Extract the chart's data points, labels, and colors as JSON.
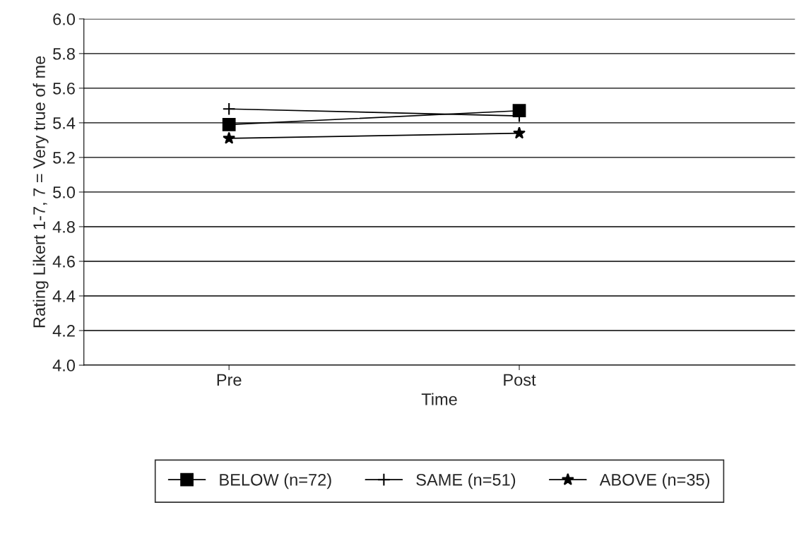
{
  "chart_data": {
    "type": "line",
    "xlabel": "Time",
    "ylabel": "Rating Likert 1-7, 7 = Very true of me",
    "categories": [
      "Pre",
      "Post"
    ],
    "series": [
      {
        "name": "BELOW (n=72)",
        "color": "#000000",
        "marker": "square",
        "values": [
          5.39,
          5.47
        ]
      },
      {
        "name": "SAME (n=51)",
        "color": "#000000",
        "marker": "cross",
        "values": [
          5.48,
          5.44
        ]
      },
      {
        "name": "ABOVE (n=35)",
        "color": "#000000",
        "marker": "star",
        "values": [
          5.31,
          5.34
        ]
      }
    ],
    "ylim": [
      4.0,
      6.0
    ],
    "yticks": [
      {
        "value": 4.0,
        "label": "4.0"
      },
      {
        "value": 4.2,
        "label": "4.2"
      },
      {
        "value": 4.4,
        "label": "4.4"
      },
      {
        "value": 4.6,
        "label": "4.6"
      },
      {
        "value": 4.8,
        "label": "4.8"
      },
      {
        "value": 5.0,
        "label": "5.0"
      },
      {
        "value": 5.2,
        "label": "5.2"
      },
      {
        "value": 5.4,
        "label": "5.4"
      },
      {
        "value": 5.6,
        "label": "5.6"
      },
      {
        "value": 5.8,
        "label": "5.8"
      },
      {
        "value": 6.0,
        "label": "6.0"
      }
    ],
    "grid": "y",
    "legend": "bottom",
    "line_style": "solid"
  }
}
